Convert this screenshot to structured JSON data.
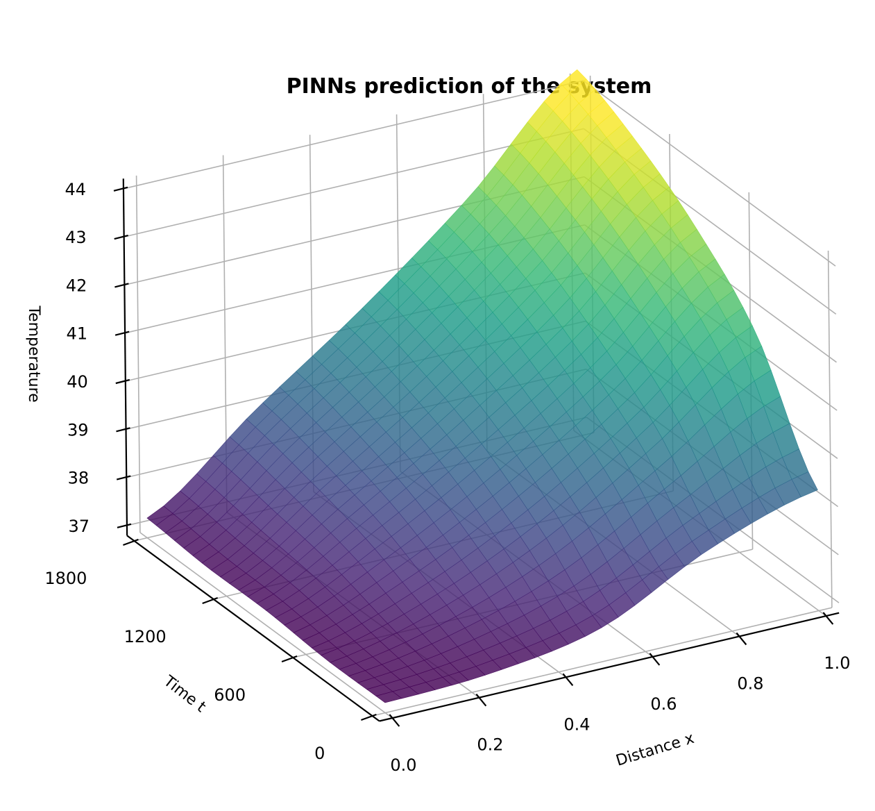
{
  "chart_data": {
    "type": "surface",
    "title": "PINNs prediction of the system",
    "xlabel": "Distance x",
    "ylabel": "Time t",
    "zlabel": "Temperature",
    "xlim": [
      0.0,
      1.0
    ],
    "ylim": [
      0,
      1800
    ],
    "zlim": [
      37,
      44
    ],
    "xticks": [
      "0.0",
      "0.2",
      "0.4",
      "0.6",
      "0.8",
      "1.0"
    ],
    "yticks": [
      "0",
      "600",
      "1200",
      "1800"
    ],
    "zticks": [
      "37",
      "38",
      "39",
      "40",
      "41",
      "42",
      "43",
      "44"
    ],
    "colormap": "viridis",
    "grid": true,
    "x": [
      0.0,
      0.25,
      0.5,
      0.75,
      1.0
    ],
    "t": [
      0,
      450,
      900,
      1350,
      1800
    ],
    "z": [
      [
        37.0,
        37.1,
        37.5,
        38.6,
        39.3
      ],
      [
        37.0,
        37.6,
        38.6,
        40.0,
        41.6
      ],
      [
        37.1,
        38.2,
        39.5,
        41.0,
        42.9
      ],
      [
        37.1,
        38.6,
        40.1,
        41.8,
        43.8
      ],
      [
        37.2,
        38.9,
        40.5,
        42.3,
        44.4
      ]
    ]
  }
}
